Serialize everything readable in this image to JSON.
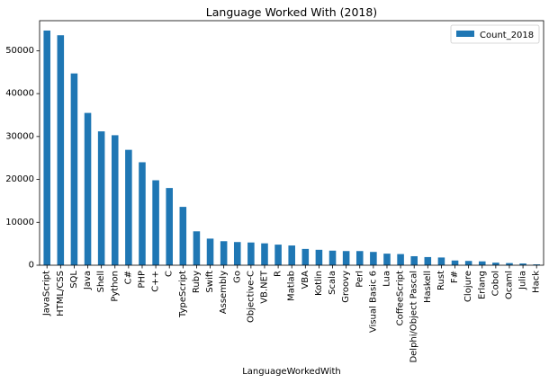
{
  "chart_data": {
    "type": "bar",
    "title": "Language Worked With (2018)",
    "xlabel": "LanguageWorkedWith",
    "ylabel": "",
    "ylim": [
      0,
      57000
    ],
    "yticks": [
      0,
      10000,
      20000,
      30000,
      40000,
      50000
    ],
    "ytick_labels": [
      "0",
      "10000",
      "20000",
      "30000",
      "40000",
      "50000"
    ],
    "grid": false,
    "legend_position": "top-right",
    "categories": [
      "JavaScript",
      "HTML/CSS",
      "SQL",
      "Java",
      "Shell",
      "Python",
      "C#",
      "PHP",
      "C++",
      "C",
      "TypeScript",
      "Ruby",
      "Swift",
      "Assembly",
      "Go",
      "Objective-C",
      "VB.NET",
      "R",
      "Matlab",
      "VBA",
      "Kotlin",
      "Scala",
      "Groovy",
      "Perl",
      "Visual Basic 6",
      "Lua",
      "CoffeeScript",
      "Delphi/Object Pascal",
      "Haskell",
      "Rust",
      "F#",
      "Clojure",
      "Erlang",
      "Cobol",
      "Ocaml",
      "Julia",
      "Hack"
    ],
    "series": [
      {
        "name": "Count_2018",
        "color": "#1f77b4",
        "values": [
          54700,
          53600,
          44700,
          35500,
          31200,
          30300,
          26900,
          24000,
          19800,
          18000,
          13600,
          7900,
          6200,
          5600,
          5400,
          5300,
          5100,
          4800,
          4600,
          3800,
          3600,
          3400,
          3300,
          3300,
          3100,
          2700,
          2600,
          2100,
          1900,
          1800,
          1100,
          1000,
          900,
          600,
          500,
          400,
          200
        ]
      }
    ]
  }
}
